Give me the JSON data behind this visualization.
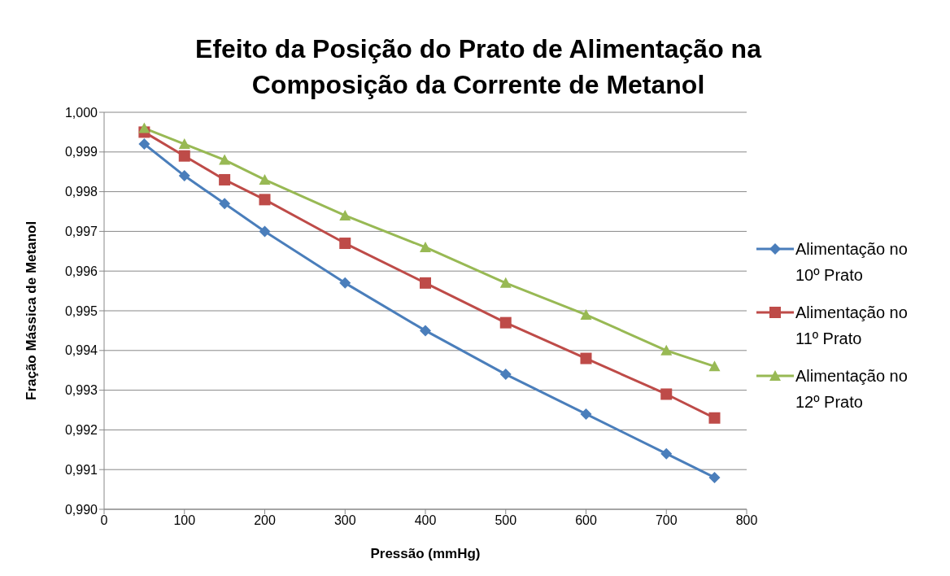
{
  "chart_data": {
    "type": "line",
    "title": "Efeito da Posição do Prato de Alimentação na Composição da Corrente de Metanol",
    "xlabel": "Pressão (mmHg)",
    "ylabel": "Fração Mássica de Metanol",
    "x": [
      50,
      100,
      150,
      200,
      300,
      400,
      500,
      600,
      700,
      760
    ],
    "series": [
      {
        "name": "Alimentação no 10º Prato",
        "color": "#4a7ebb",
        "marker": "diamond",
        "values": [
          0.9992,
          0.9984,
          0.9977,
          0.997,
          0.9957,
          0.9945,
          0.9934,
          0.9924,
          0.9914,
          0.9908
        ]
      },
      {
        "name": "Alimentação no 11º Prato",
        "color": "#be4b48",
        "marker": "square",
        "values": [
          0.9995,
          0.9989,
          0.9983,
          0.9978,
          0.9967,
          0.9957,
          0.9947,
          0.9938,
          0.9929,
          0.9923
        ]
      },
      {
        "name": "Alimentação no 12º Prato",
        "color": "#98b954",
        "marker": "triangle",
        "values": [
          0.9996,
          0.9992,
          0.9988,
          0.9983,
          0.9974,
          0.9966,
          0.9957,
          0.9949,
          0.994,
          0.9936
        ]
      }
    ],
    "xlim": [
      0,
      800
    ],
    "xticks": [
      0,
      100,
      200,
      300,
      400,
      500,
      600,
      700,
      800
    ],
    "ylim": [
      0.99,
      1.0
    ],
    "yticks": [
      {
        "value": 0.99,
        "label": "0,990"
      },
      {
        "value": 0.991,
        "label": "0,991"
      },
      {
        "value": 0.992,
        "label": "0,992"
      },
      {
        "value": 0.993,
        "label": "0,993"
      },
      {
        "value": 0.994,
        "label": "0,994"
      },
      {
        "value": 0.995,
        "label": "0,995"
      },
      {
        "value": 0.996,
        "label": "0,996"
      },
      {
        "value": 0.997,
        "label": "0,997"
      },
      {
        "value": 0.998,
        "label": "0,998"
      },
      {
        "value": 0.999,
        "label": "0,999"
      },
      {
        "value": 1.0,
        "label": "1,000"
      }
    ],
    "grid": "y",
    "legend": "right"
  }
}
